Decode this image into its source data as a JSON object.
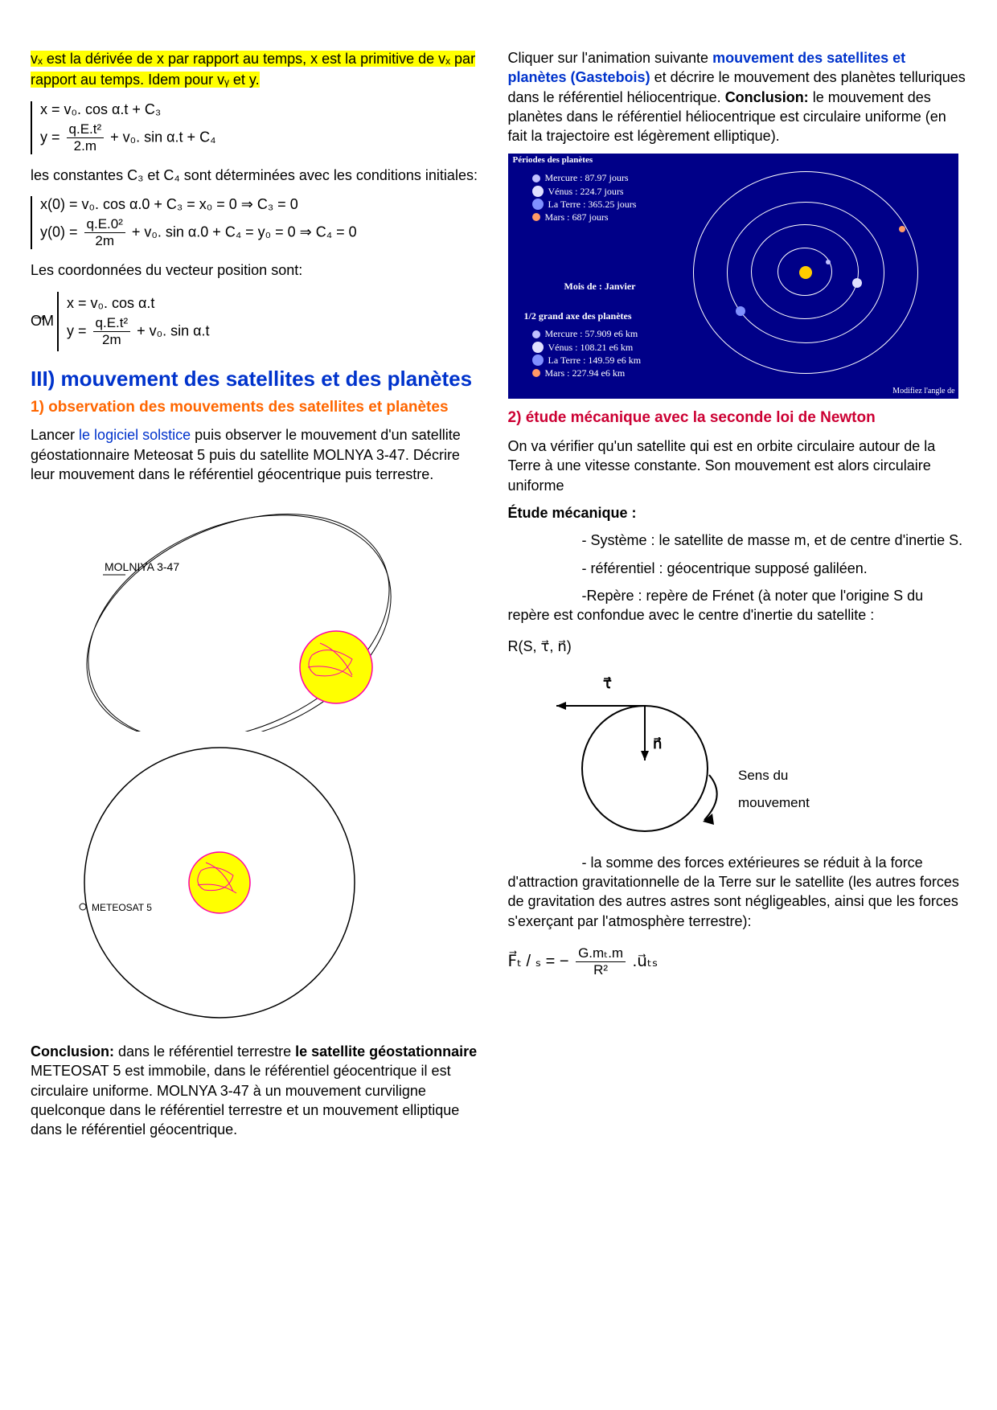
{
  "left": {
    "highlight": "vₓ est la dérivée de x par rapport au temps, x est la primitive de vₓ par rapport au temps. Idem pour vᵧ et y.",
    "eq1_x": "x = v₀. cos α.t + C₃",
    "eq1_y_pre": "y = ",
    "eq1_y_num": "q.E.t²",
    "eq1_y_den": "2.m",
    "eq1_y_post": " + v₀. sin α.t + C₄",
    "constants_text": "les constantes C₃ et C₄ sont déterminées avec les conditions initiales:",
    "eq2_x": "x(0) = v₀. cos α.0 + C₃ = x₀ = 0 ⇒ C₃ = 0",
    "eq2_y_pre": "y(0)  = ",
    "eq2_y_num": "q.E.0²",
    "eq2_y_den": "2m",
    "eq2_y_post": " + v₀. sin α.0 + C₄ = y₀ = 0 ⇒ C₄ = 0",
    "coords_text": "Les coordonnées du vecteur position sont:",
    "om_label": "OM",
    "eq3_x": "x = v₀. cos α.t",
    "eq3_y_pre": "y  = ",
    "eq3_y_num": "q.E.t²",
    "eq3_y_den": "2m",
    "eq3_y_post": " + v₀. sin α.t",
    "h2": "III) mouvement des satellites et des planètes",
    "h3_1": "1) observation des mouvements des satellites et planètes",
    "p_lancer_1": "Lancer ",
    "p_lancer_link": "le logiciel solstice",
    "p_lancer_2": " puis observer le mouvement d'un satellite géostationnaire Meteosat 5 puis du satellite MOLNYA 3-47. Décrire leur mouvement dans le référentiel géocentrique puis terrestre.",
    "molniya_label": "MOLNIYA 3-47",
    "meteosat_label": "METEOSAT 5",
    "conclusion_b": "Conclusion:",
    "conclusion_1": " dans le référentiel terrestre ",
    "conclusion_sat_b": "le satellite géostationnaire",
    "conclusion_2": " METEOSAT 5 est immobile, dans le référentiel géocentrique il est circulaire uniforme. MOLNYA 3-47 à un mouvement curviligne quelconque dans le référentiel terrestre et un mouvement elliptique dans le référentiel géocentrique."
  },
  "right": {
    "p1_a": "Cliquer sur l'animation suivante ",
    "p1_link": "mouvement des satellites et planètes (Gastebois)",
    "p1_b": " et décrire le mouvement des planètes telluriques dans le référentiel héliocentrique. ",
    "p1_conc_b": "Conclusion:",
    "p1_conc": " le mouvement des planètes dans le référentiel héliocentrique est circulaire uniforme (en fait la trajectoire est légèrement elliptique).",
    "box_title": "Périodes des planètes",
    "periods": [
      "Mercure : 87.97 jours",
      "Vénus : 224.7 jours",
      "La Terre : 365.25 jours",
      "Mars : 687 jours"
    ],
    "mois": "Mois de : Janvier",
    "axis_title": "1/2 grand axe des planètes",
    "axes": [
      "Mercure : 57.909 e6 km",
      "Vénus : 108.21 e6 km",
      "La Terre : 149.59 e6 km",
      "Mars : 227.94 e6 km"
    ],
    "mod_angle": "Modifiez l'angle de",
    "h3_2": "2) étude mécanique avec la seconde loi de Newton",
    "p2": "On va vérifier qu'un satellite qui est en orbite circulaire autour de la Terre à une vitesse constante. Son mouvement est alors circulaire uniforme",
    "etude_b": "Étude mécanique :",
    "li1": "- Système : le satellite de masse m, et de centre d'inertie S.",
    "li2": "- référentiel : géocentrique supposé galiléen.",
    "li3": "-Repère : repère de Frénet (à noter que l'origine S du repère est confondue avec le centre d'inertie du satellite :",
    "r_label": "R(S, τ⃗, n⃗)",
    "frenet_tau": "τ⃗",
    "frenet_n": "n⃗",
    "frenet_sens1": "Sens du",
    "frenet_sens2": "mouvement",
    "li4": "- la somme des forces extérieures se réduit à la force d'attraction gravitationnelle de la Terre sur le satellite (les autres forces de gravitation des autres astres sont négligeables, ainsi que les forces s'exerçant par l'atmosphère terrestre):",
    "force_lhs": "F⃗ₜ / ₛ = − ",
    "force_num": "G.mₜ.m",
    "force_den": "R²",
    "force_rhs": " .u⃗ₜₛ",
    "colors": {
      "orbit_stroke": "#ffffff",
      "sun": "#ffcc00",
      "mercury": "#c0c0ff",
      "venus": "#e0e0ff",
      "earth": "#8090ff",
      "mars": "#ff9966",
      "box_bg": "#000088"
    }
  }
}
